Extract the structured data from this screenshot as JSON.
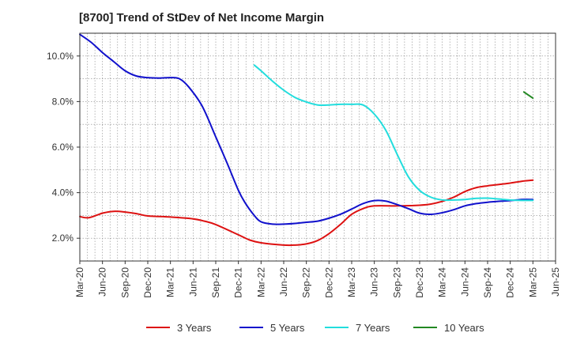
{
  "chart_data": {
    "type": "line",
    "title": "[8700]  Trend of StDev of Net Income Margin",
    "xlabel": "",
    "ylabel": "",
    "x_labels": [
      "Mar-20",
      "Jun-20",
      "Sep-20",
      "Dec-20",
      "Mar-21",
      "Jun-21",
      "Sep-21",
      "Dec-21",
      "Mar-22",
      "Jun-22",
      "Sep-22",
      "Dec-22",
      "Mar-23",
      "Jun-23",
      "Sep-23",
      "Dec-23",
      "Mar-24",
      "Jun-24",
      "Sep-24",
      "Dec-24",
      "Mar-25",
      "Jun-25"
    ],
    "ylim": [
      1.0,
      11.0
    ],
    "y_ticks": [
      2.0,
      4.0,
      6.0,
      8.0,
      10.0
    ],
    "y_tick_labels": [
      "2.0%",
      "4.0%",
      "6.0%",
      "8.0%",
      "10.0%"
    ],
    "grid": true,
    "legend_position": "bottom",
    "series": [
      {
        "name": "3 Years",
        "color": "#dd1111",
        "points": [
          [
            0,
            2.95
          ],
          [
            0.4,
            2.9
          ],
          [
            1,
            3.1
          ],
          [
            1.5,
            3.18
          ],
          [
            2,
            3.15
          ],
          [
            2.5,
            3.08
          ],
          [
            3,
            2.98
          ],
          [
            4,
            2.93
          ],
          [
            5,
            2.85
          ],
          [
            5.5,
            2.75
          ],
          [
            6,
            2.6
          ],
          [
            7,
            2.15
          ],
          [
            7.5,
            1.92
          ],
          [
            8,
            1.8
          ],
          [
            9,
            1.7
          ],
          [
            9.5,
            1.7
          ],
          [
            10,
            1.75
          ],
          [
            10.5,
            1.9
          ],
          [
            11,
            2.2
          ],
          [
            11.5,
            2.6
          ],
          [
            12,
            3.05
          ],
          [
            12.5,
            3.3
          ],
          [
            13,
            3.42
          ],
          [
            14,
            3.42
          ],
          [
            15,
            3.45
          ],
          [
            15.5,
            3.5
          ],
          [
            16,
            3.62
          ],
          [
            16.5,
            3.8
          ],
          [
            17,
            4.05
          ],
          [
            17.5,
            4.22
          ],
          [
            18,
            4.3
          ],
          [
            18.5,
            4.36
          ],
          [
            19,
            4.42
          ],
          [
            19.5,
            4.5
          ],
          [
            20,
            4.55
          ]
        ]
      },
      {
        "name": "5 Years",
        "color": "#1111cc",
        "points": [
          [
            0,
            10.95
          ],
          [
            0.5,
            10.6
          ],
          [
            1,
            10.15
          ],
          [
            1.5,
            9.75
          ],
          [
            2,
            9.35
          ],
          [
            2.5,
            9.12
          ],
          [
            3,
            9.05
          ],
          [
            3.5,
            9.03
          ],
          [
            4,
            9.05
          ],
          [
            4.4,
            9.0
          ],
          [
            4.8,
            8.65
          ],
          [
            5.4,
            7.8
          ],
          [
            6,
            6.45
          ],
          [
            6.5,
            5.3
          ],
          [
            7,
            4.1
          ],
          [
            7.3,
            3.55
          ],
          [
            7.7,
            3.0
          ],
          [
            8,
            2.72
          ],
          [
            8.5,
            2.62
          ],
          [
            9,
            2.62
          ],
          [
            9.5,
            2.65
          ],
          [
            10,
            2.7
          ],
          [
            10.5,
            2.75
          ],
          [
            11,
            2.88
          ],
          [
            11.5,
            3.05
          ],
          [
            12,
            3.28
          ],
          [
            12.5,
            3.52
          ],
          [
            13,
            3.65
          ],
          [
            13.5,
            3.63
          ],
          [
            14,
            3.48
          ],
          [
            14.5,
            3.3
          ],
          [
            15,
            3.1
          ],
          [
            15.5,
            3.05
          ],
          [
            16,
            3.12
          ],
          [
            16.5,
            3.25
          ],
          [
            17,
            3.42
          ],
          [
            17.5,
            3.52
          ],
          [
            18,
            3.58
          ],
          [
            18.5,
            3.62
          ],
          [
            19,
            3.65
          ],
          [
            19.5,
            3.7
          ],
          [
            20,
            3.7
          ]
        ]
      },
      {
        "name": "7 Years",
        "color": "#22dddd",
        "points": [
          [
            7.7,
            9.6
          ],
          [
            8,
            9.35
          ],
          [
            8.5,
            8.9
          ],
          [
            9,
            8.5
          ],
          [
            9.5,
            8.18
          ],
          [
            10,
            7.98
          ],
          [
            10.5,
            7.85
          ],
          [
            11,
            7.85
          ],
          [
            11.5,
            7.88
          ],
          [
            12,
            7.88
          ],
          [
            12.5,
            7.85
          ],
          [
            13,
            7.45
          ],
          [
            13.5,
            6.75
          ],
          [
            14,
            5.7
          ],
          [
            14.5,
            4.7
          ],
          [
            15,
            4.1
          ],
          [
            15.5,
            3.8
          ],
          [
            16,
            3.68
          ],
          [
            16.5,
            3.68
          ],
          [
            17,
            3.7
          ],
          [
            17.5,
            3.75
          ],
          [
            18,
            3.76
          ],
          [
            18.5,
            3.72
          ],
          [
            19,
            3.68
          ],
          [
            19.5,
            3.66
          ],
          [
            20,
            3.66
          ]
        ]
      },
      {
        "name": "10 Years",
        "color": "#228822",
        "points": [
          [
            19.6,
            8.42
          ],
          [
            20,
            8.15
          ]
        ]
      }
    ]
  }
}
